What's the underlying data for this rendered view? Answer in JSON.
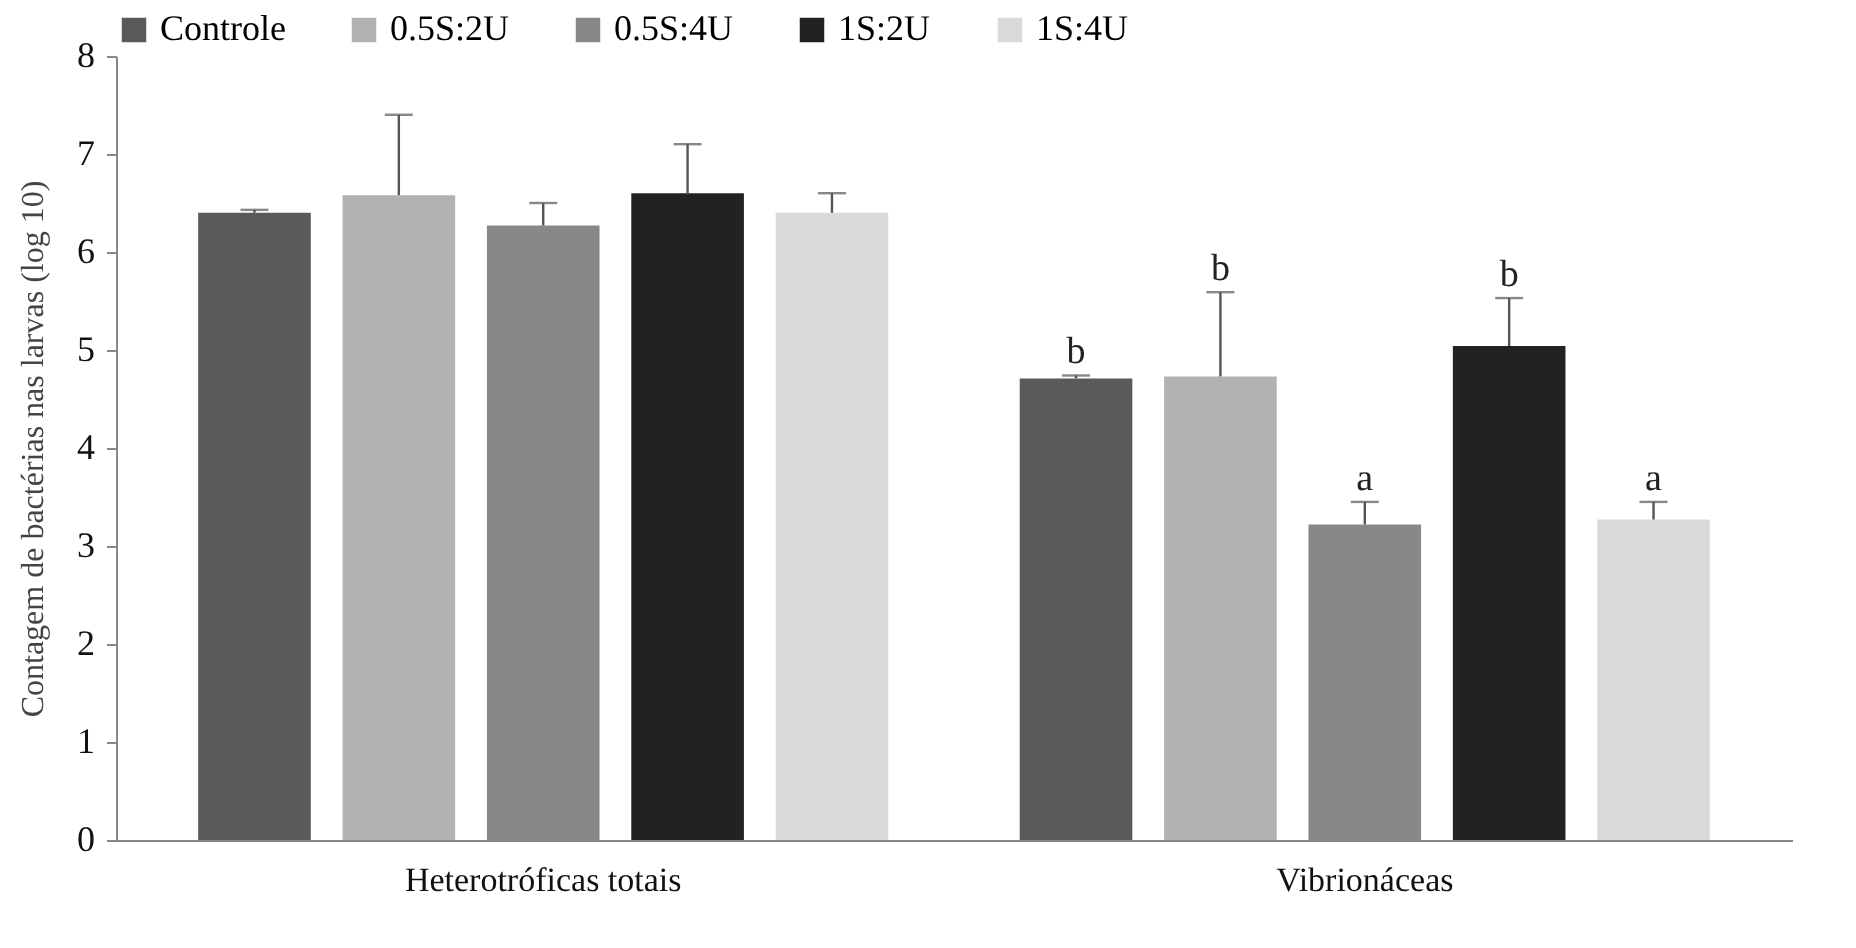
{
  "chart_data": {
    "type": "bar",
    "ylabel": "Contagem de bactérias nas larvas (log 10)",
    "categories": [
      "Heterotróficas totais",
      "Vibrionáceas"
    ],
    "ylim": [
      0,
      8
    ],
    "yticks": [
      0,
      1,
      2,
      3,
      4,
      5,
      6,
      7,
      8
    ],
    "grid": false,
    "legend": "top",
    "series": [
      {
        "name": "Controle",
        "color": "#5a5a5a",
        "values": [
          6.4,
          4.71
        ],
        "errors": [
          [
            6.4,
            6.43
          ],
          [
            4.71,
            4.74
          ]
        ]
      },
      {
        "name": "0.5S:2U",
        "color": "#b2b2b2",
        "values": [
          6.58,
          4.73
        ],
        "errors": [
          [
            6.58,
            7.4
          ],
          [
            4.73,
            5.59
          ]
        ]
      },
      {
        "name": "0.5S:4U",
        "color": "#888888",
        "values": [
          6.27,
          3.22
        ],
        "errors": [
          [
            6.27,
            6.5
          ],
          [
            3.22,
            3.45
          ]
        ]
      },
      {
        "name": "1S:2U",
        "color": "#222222",
        "values": [
          6.6,
          5.04
        ],
        "errors": [
          [
            6.6,
            7.1
          ],
          [
            5.04,
            5.53
          ]
        ]
      },
      {
        "name": "1S:4U",
        "color": "#d9d9d9",
        "values": [
          6.4,
          3.27
        ],
        "errors": [
          [
            6.4,
            6.6
          ],
          [
            3.27,
            3.45
          ]
        ]
      }
    ],
    "annotations": [
      "b",
      "b",
      "a",
      "b",
      "a"
    ]
  }
}
